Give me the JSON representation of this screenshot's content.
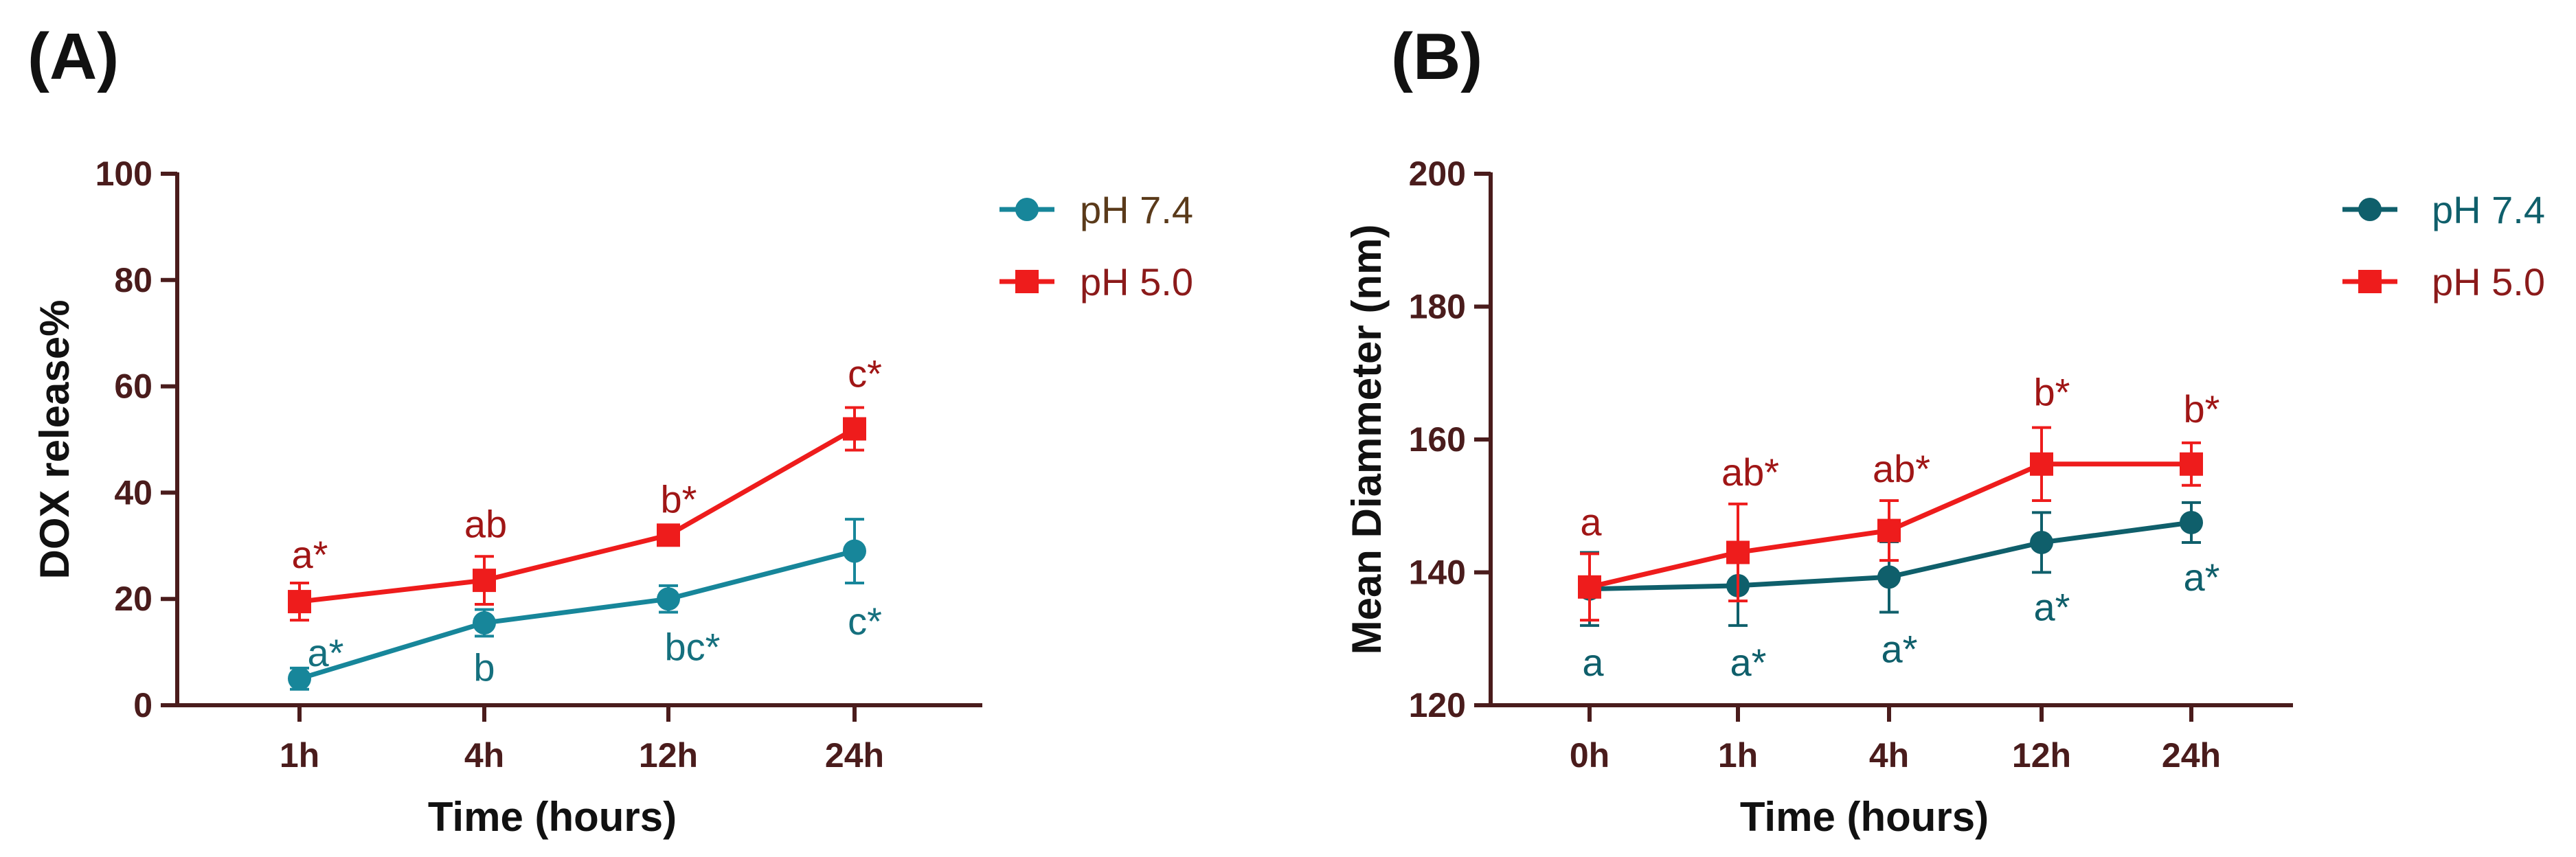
{
  "colors": {
    "axis": "#4a1c1c",
    "series_a_blue": "#17869a",
    "series_b_blue": "#0f5f6b",
    "red": "#ee1c1c",
    "legend_text_a_blue": "#5a3a1a",
    "legend_text_b_blue": "#0f5f6b",
    "legend_text_red": "#8b1a1a",
    "annot_red": "#a01616",
    "annot_blue_a": "#15707e",
    "annot_blue_b": "#0f5f6b"
  },
  "chart_data": [
    {
      "panel_label": "(A)",
      "type": "line",
      "categories": [
        "1h",
        "4h",
        "12h",
        "24h"
      ],
      "xlabel": "Time (hours)",
      "ylabel": "DOX release%",
      "ylim": [
        0,
        100
      ],
      "yticks": [
        "0",
        "20",
        "40",
        "60",
        "80",
        "100"
      ],
      "series": [
        {
          "name": "pH 7.4",
          "marker": "circle",
          "values": [
            5,
            15.5,
            20,
            29
          ],
          "errors": [
            2,
            2.5,
            2.5,
            6
          ],
          "annotations": [
            "a*",
            "b",
            "bc*",
            "c*"
          ]
        },
        {
          "name": "pH 5.0",
          "marker": "square",
          "values": [
            19.5,
            23.5,
            32,
            52
          ],
          "errors": [
            3.5,
            4.5,
            1,
            4
          ],
          "annotations": [
            "a*",
            "ab",
            "b*",
            "c*"
          ]
        }
      ]
    },
    {
      "panel_label": "(B)",
      "type": "line",
      "categories": [
        "0h",
        "1h",
        "4h",
        "12h",
        "24h"
      ],
      "xlabel": "Time (hours)",
      "ylabel": "Mean Diammeter (nm)",
      "ylim": [
        120,
        200
      ],
      "yticks": [
        "120",
        "140",
        "160",
        "180",
        "200"
      ],
      "series": [
        {
          "name": "pH 7.4",
          "marker": "circle",
          "values": [
            137.5,
            138,
            139.3,
            144.5,
            147.5
          ],
          "errors": [
            5.5,
            6,
            5.3,
            4.5,
            3
          ],
          "annotations": [
            "a",
            "a*",
            "a*",
            "a*",
            "a*"
          ]
        },
        {
          "name": "pH 5.0",
          "marker": "square",
          "values": [
            137.8,
            143,
            146.3,
            156.3,
            156.3
          ],
          "errors": [
            5,
            7.3,
            4.5,
            5.5,
            3.2
          ],
          "annotations": [
            "a",
            "ab*",
            "ab*",
            "b*",
            "b*"
          ]
        }
      ]
    }
  ]
}
